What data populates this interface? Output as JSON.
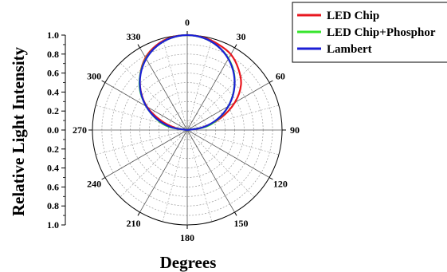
{
  "chart_data": {
    "type": "polar-line",
    "ylabel": "Relative Light Intensity",
    "xlabel": "Degrees",
    "radial_ticks": [
      "0.0",
      "0.2",
      "0.4",
      "0.6",
      "0.8",
      "1.0"
    ],
    "radial_range": [
      0,
      1.0
    ],
    "angle_ticks": [
      "0",
      "30",
      "60",
      "90",
      "120",
      "150",
      "180",
      "210",
      "240",
      "270",
      "300",
      "330"
    ],
    "angular_direction": "clockwise",
    "zero_at": "top",
    "grid": true,
    "legend_position": "top-right",
    "series": [
      {
        "name": "LED Chip",
        "color": "#e8171f",
        "angles": [
          -90,
          -80,
          -70,
          -60,
          -50,
          -40,
          -30,
          -20,
          -10,
          0,
          10,
          20,
          30,
          40,
          50,
          60,
          70,
          80,
          90
        ],
        "values": [
          0.0,
          0.13,
          0.3,
          0.49,
          0.64,
          0.77,
          0.88,
          0.95,
          0.99,
          1.0,
          0.99,
          0.96,
          0.92,
          0.84,
          0.74,
          0.58,
          0.38,
          0.17,
          0.0
        ]
      },
      {
        "name": "LED Chip+Phosphor",
        "color": "#37e52d",
        "angles": [
          -90,
          -80,
          -70,
          -60,
          -50,
          -40,
          -30,
          -20,
          -10,
          0,
          10,
          20,
          30,
          40,
          50,
          60,
          70,
          80,
          90
        ],
        "values": [
          0.0,
          0.2,
          0.35,
          0.5,
          0.65,
          0.77,
          0.87,
          0.94,
          0.985,
          1.0,
          0.985,
          0.94,
          0.87,
          0.77,
          0.64,
          0.5,
          0.35,
          0.2,
          0.0
        ]
      },
      {
        "name": "Lambert",
        "color": "#1c1fd6",
        "angles": [
          -90,
          -80,
          -70,
          -60,
          -50,
          -40,
          -30,
          -20,
          -10,
          0,
          10,
          20,
          30,
          40,
          50,
          60,
          70,
          80,
          90
        ],
        "values": [
          0.0,
          0.174,
          0.342,
          0.5,
          0.643,
          0.766,
          0.866,
          0.94,
          0.985,
          1.0,
          0.985,
          0.94,
          0.866,
          0.766,
          0.643,
          0.5,
          0.342,
          0.174,
          0.0
        ]
      }
    ]
  }
}
